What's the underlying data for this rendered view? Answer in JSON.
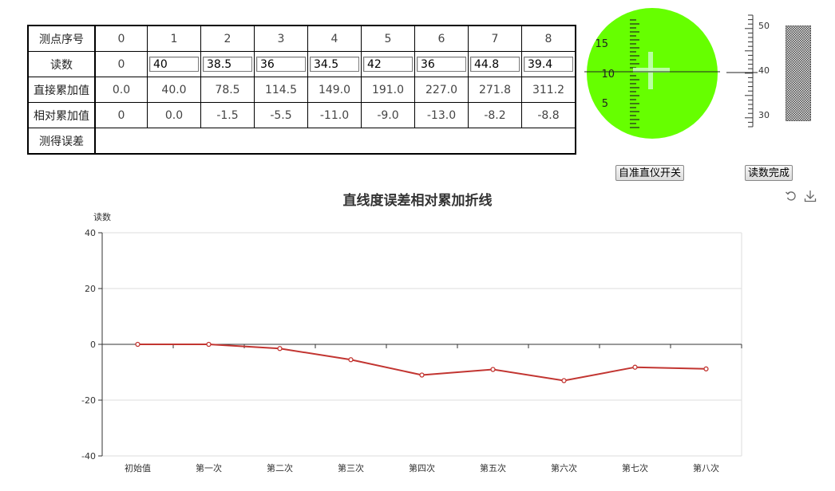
{
  "table": {
    "row_headers": [
      "测点序号",
      "读数",
      "直接累加值",
      "相对累加值",
      "测得误差"
    ],
    "point_numbers": [
      "0",
      "1",
      "2",
      "3",
      "4",
      "5",
      "6",
      "7",
      "8"
    ],
    "reading_first": "0",
    "readings": [
      "40",
      "38.5",
      "36",
      "34.5",
      "42",
      "36",
      "44.8",
      "39.4"
    ],
    "direct_sums": [
      "0.0",
      "40.0",
      "78.5",
      "114.5",
      "149.0",
      "191.0",
      "227.0",
      "271.8",
      "311.2"
    ],
    "relative_sums": [
      "0",
      "0.0",
      "-1.5",
      "-5.5",
      "-11.0",
      "-9.0",
      "-13.0",
      "-8.2",
      "-8.8"
    ],
    "measured_error": ""
  },
  "collimator": {
    "scale_labels": [
      "15",
      "10",
      "5"
    ],
    "bg_color": "#66ff00"
  },
  "micrometer": {
    "scale_labels": [
      "50",
      "40",
      "30"
    ]
  },
  "buttons": {
    "collimator_toggle": "自准直仪开关",
    "reading_done": "读数完成"
  },
  "chart_data": {
    "type": "line",
    "title": "直线度误差相对累加折线",
    "ylabel": "读数",
    "xlabel": "",
    "categories": [
      "初始值",
      "第一次",
      "第二次",
      "第三次",
      "第四次",
      "第五次",
      "第六次",
      "第七次",
      "第八次"
    ],
    "series": [
      {
        "values": [
          0,
          0,
          -1.5,
          -5.5,
          -11,
          -9,
          -13,
          -8.2,
          -8.8
        ],
        "color": "#c23531"
      }
    ],
    "ylim": [
      -40,
      40
    ],
    "yticks": [
      -40,
      -20,
      0,
      20,
      40
    ],
    "grid": true,
    "toolbox": [
      "restore-icon",
      "save-image-icon"
    ]
  }
}
